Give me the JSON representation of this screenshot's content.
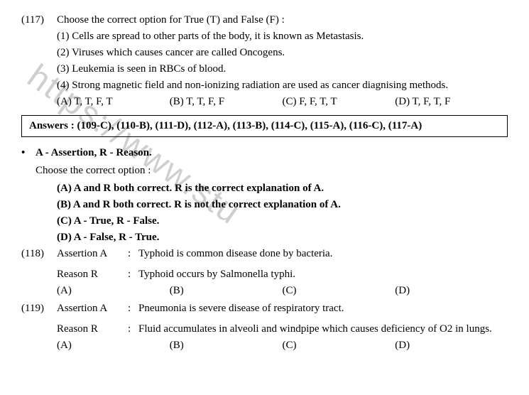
{
  "watermark": "https://www.stu",
  "q117": {
    "number": "(117)",
    "prompt": "Choose the correct option for True (T) and False (F) :",
    "subs": [
      "(1) Cells are spread to other parts of the body, it is known as Metastasis.",
      "(2) Viruses which causes cancer are called Oncogens.",
      "(3) Leukemia is seen in RBCs of blood.",
      "(4) Strong magnetic field and non-ionizing radiation are used as cancer diagnising methods."
    ],
    "options": {
      "a": "(A) T, T, F, T",
      "b": "(B) T, T, F, F",
      "c": "(C) F, F, T, T",
      "d": "(D) T, F, T, F"
    }
  },
  "answerBox": "Answers : (109-C), (110-B), (111-D), (112-A), (113-B), (114-C), (115-A), (116-C), (117-A)",
  "arHeading": "A - Assertion, R - Reason.",
  "arInstruction": "Choose the correct option :",
  "arOptions": {
    "a": "(A) A and R both correct. R is the correct explanation of A.",
    "b": "(B) A and R both correct. R is not the correct explanation of A.",
    "c": "(C) A - True, R - False.",
    "d": "(D) A - False, R - True."
  },
  "q118": {
    "number": "(118)",
    "assertionLabel": "Assertion A",
    "assertionText": "Typhoid is common disease done by bacteria.",
    "reasonLabel": "Reason R",
    "reasonText": "Typhoid occurs by Salmonella typhi.",
    "options": {
      "a": "(A)",
      "b": "(B)",
      "c": "(C)",
      "d": "(D)"
    }
  },
  "q119": {
    "number": "(119)",
    "assertionLabel": "Assertion A",
    "assertionText": "Pneumonia is severe disease of respiratory tract.",
    "reasonLabel": "Reason R",
    "reasonText": "Fluid accumulates in alveoli and windpipe which causes deficiency of O2 in lungs.",
    "options": {
      "a": "(A)",
      "b": "(B)",
      "c": "(C)",
      "d": "(D)"
    }
  }
}
